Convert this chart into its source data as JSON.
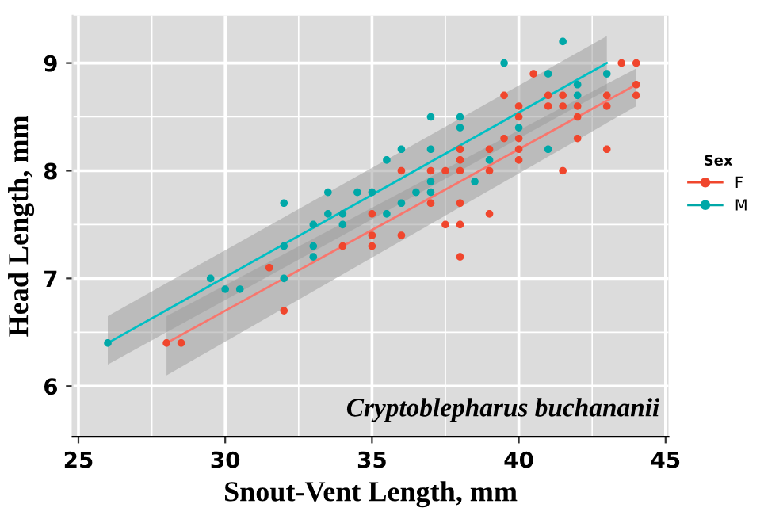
{
  "chart_data": {
    "type": "scatter",
    "xlabel": "Snout-Vent Length, mm",
    "ylabel": "Head Length, mm",
    "legend_title": "Sex",
    "legend": "right",
    "grid": true,
    "marker": "circle",
    "xlim": [
      24.8,
      45.1
    ],
    "ylim": [
      5.53,
      9.44
    ],
    "xticks": [
      25,
      30,
      35,
      40,
      45
    ],
    "yticks": [
      6,
      7,
      8,
      9
    ],
    "annotations": [
      "Cryptoblepharus buchananii"
    ],
    "series": [
      {
        "name": "F",
        "color": "#f0462d",
        "x": [
          28,
          28.5,
          31.5,
          32,
          34,
          35,
          35,
          35,
          36,
          36,
          37,
          37,
          37.5,
          37.5,
          38,
          38,
          38,
          38,
          38,
          38,
          39,
          39,
          39,
          39.5,
          39.5,
          40,
          40,
          40,
          40,
          40,
          40.5,
          41,
          41,
          41.5,
          41.5,
          41.5,
          42,
          42,
          42,
          43,
          43,
          43,
          43.5,
          44,
          44,
          44
        ],
        "values": [
          6.4,
          6.4,
          7.1,
          6.7,
          7.3,
          7.6,
          7.4,
          7.3,
          8.0,
          7.4,
          8.0,
          7.7,
          8.0,
          7.5,
          8.2,
          8.1,
          8.0,
          7.7,
          7.5,
          7.2,
          8.2,
          8.0,
          7.6,
          8.7,
          8.3,
          8.6,
          8.5,
          8.3,
          8.2,
          8.1,
          8.9,
          8.7,
          8.6,
          8.7,
          8.6,
          8.0,
          8.6,
          8.5,
          8.3,
          8.7,
          8.6,
          8.2,
          9.0,
          9.0,
          8.8,
          8.7
        ]
      },
      {
        "name": "M",
        "color": "#00a8a8",
        "x": [
          26,
          29.5,
          30,
          30.5,
          32,
          32,
          32,
          33,
          33,
          33,
          33.5,
          33.5,
          34,
          34,
          34.5,
          35,
          35.5,
          35.5,
          36,
          36,
          36.5,
          37,
          37,
          37,
          37,
          38,
          38,
          38.5,
          39,
          39.5,
          40,
          41,
          41,
          41.5,
          42,
          42,
          43
        ],
        "values": [
          6.4,
          7.0,
          6.9,
          6.9,
          7.0,
          7.3,
          7.7,
          7.3,
          7.2,
          7.5,
          7.8,
          7.6,
          7.6,
          7.5,
          7.8,
          7.8,
          8.1,
          7.6,
          8.2,
          7.7,
          7.8,
          8.5,
          8.2,
          7.9,
          7.8,
          8.5,
          8.4,
          7.9,
          8.1,
          9.0,
          8.4,
          8.9,
          8.2,
          9.2,
          8.8,
          8.7,
          8.9
        ]
      },
      {
        "type": "line",
        "marker": "none",
        "color": "#f8766d",
        "x": [
          28,
          44
        ],
        "values": [
          6.4,
          8.8
        ],
        "lower": [
          6.1,
          8.6
        ],
        "upper": [
          6.65,
          8.95
        ]
      },
      {
        "type": "line",
        "marker": "none",
        "color": "#00bfc4",
        "x": [
          26,
          43
        ],
        "values": [
          6.4,
          9.0
        ],
        "lower": [
          6.2,
          8.75
        ],
        "upper": [
          6.65,
          9.25
        ]
      }
    ]
  }
}
